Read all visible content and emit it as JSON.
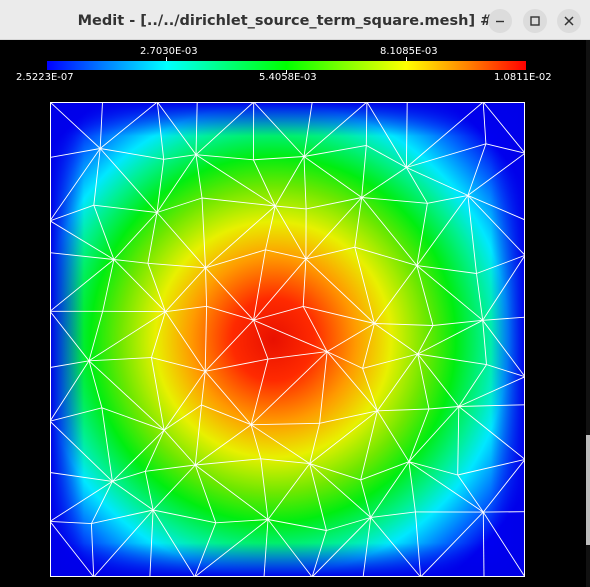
{
  "window": {
    "title": "Medit - [../../dirichlet_source_term_square.mesh] #1",
    "controls": {
      "minimize": "minimize-icon",
      "maximize": "maximize-icon",
      "close": "close-icon"
    }
  },
  "colorbar": {
    "top_labels": [
      "2.7030E-03",
      "8.1085E-03"
    ],
    "bottom_labels": [
      "2.5223E-07",
      "5.4058E-03",
      "1.0811E-02"
    ],
    "min": 2.5223e-07,
    "max": 0.010811,
    "colors": [
      "#0000ff",
      "#00ffff",
      "#00ff00",
      "#ffff00",
      "#ff0000"
    ]
  },
  "plot": {
    "background": "#000000",
    "mesh_color": "#ffffff"
  }
}
